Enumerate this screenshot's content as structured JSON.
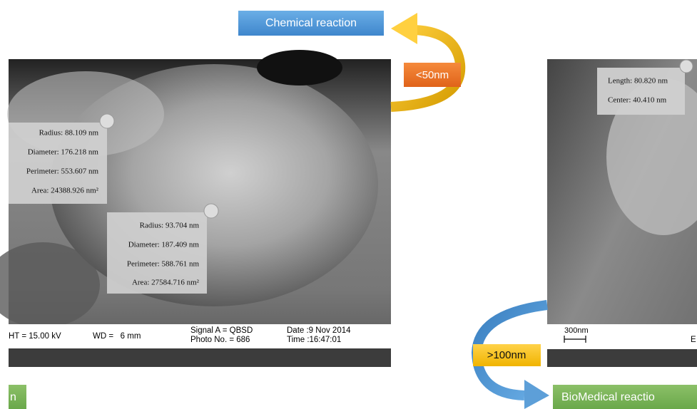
{
  "top": {
    "chemical_label": "Chemical reaction",
    "small_size": "<50nm"
  },
  "left_image": {
    "measure_1": [
      "Radius: 88.109 nm",
      "Diameter: 176.218 nm",
      "Perimeter: 553.607 nm",
      "Area: 24388.926 nm²"
    ],
    "measure_2": [
      "Radius: 93.704 nm",
      "Diameter: 187.409 nm",
      "Perimeter: 588.761 nm",
      "Area: 27584.716 nm²"
    ],
    "info": {
      "ht": "HT = 15.00 kV",
      "wd": "WD =   6 mm",
      "signal": "Signal A = QBSD",
      "photo": "Photo No. = 686",
      "date": "Date :9 Nov 2014",
      "time": "Time :16:47:01"
    }
  },
  "right_image": {
    "measure": [
      "Length: 80.820 nm",
      "Center: 40.410 nm"
    ],
    "scale": "300nm",
    "info_cut": "E"
  },
  "bottom": {
    "left_label": "n",
    "large_size": ">100nm",
    "biomedical_label": "BioMedical reactio"
  }
}
